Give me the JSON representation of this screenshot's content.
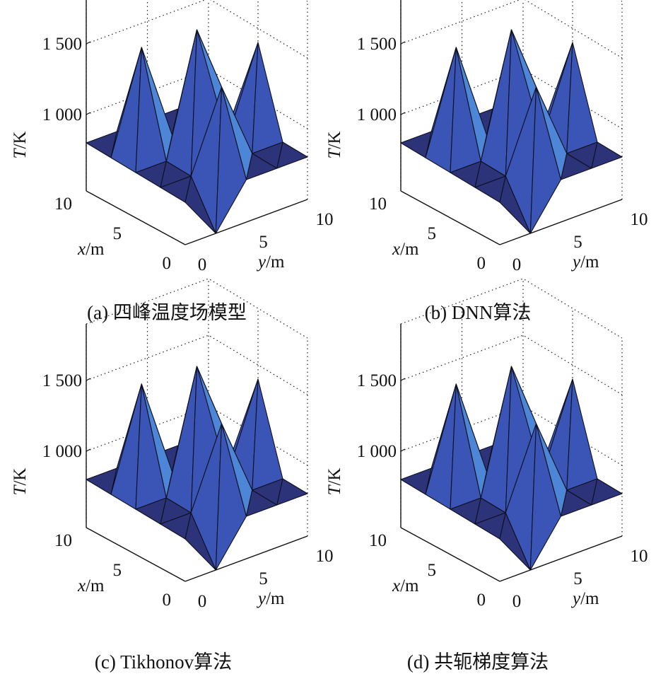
{
  "chart_data": [
    {
      "type": "surface3d",
      "caption": "(a) 四峰温度场模型",
      "zlabel_italic": "T",
      "zlabel_unit": "/K",
      "xlabel_italic": "x",
      "xlabel_unit": "/m",
      "ylabel_italic": "y",
      "ylabel_unit": "/m",
      "z_ticks": [
        "1 500",
        "1 000"
      ],
      "x_ticks": [
        "10",
        "5",
        "0"
      ],
      "y_ticks": [
        "0",
        "5",
        "10"
      ],
      "x_range": [
        0,
        10
      ],
      "y_range": [
        0,
        10
      ],
      "zlim": [
        500,
        1700
      ],
      "grid": "on",
      "colors": {
        "dark": "#2d3378",
        "mid": "#3a55b5",
        "light": "#4d86d6",
        "edge": "#0d1020",
        "grid": "#222222"
      },
      "peaks": [
        {
          "x": 7.5,
          "y": 2.5,
          "T": 1500
        },
        {
          "x": 5,
          "y": 5,
          "T": 1650
        },
        {
          "x": 2.5,
          "y": 5,
          "T": 1350
        },
        {
          "x": 5,
          "y": 10,
          "T": 1400
        }
      ],
      "valley": {
        "x": 0,
        "y": 2.5,
        "T": 500
      },
      "base_T": 800
    },
    {
      "type": "surface3d",
      "caption": "(b) DNN算法",
      "zlabel_italic": "T",
      "zlabel_unit": "/K",
      "xlabel_italic": "x",
      "xlabel_unit": "/m",
      "ylabel_italic": "y",
      "ylabel_unit": "/m",
      "z_ticks": [
        "1 500",
        "1 000"
      ],
      "x_ticks": [
        "10",
        "5",
        "0"
      ],
      "y_ticks": [
        "0",
        "5",
        "10"
      ],
      "x_range": [
        0,
        10
      ],
      "y_range": [
        0,
        10
      ],
      "zlim": [
        500,
        1700
      ],
      "grid": "on",
      "colors": {
        "dark": "#2d3378",
        "mid": "#3a55b5",
        "light": "#4d86d6",
        "edge": "#0d1020",
        "grid": "#222222"
      },
      "peaks": [
        {
          "x": 7.5,
          "y": 2.5,
          "T": 1500
        },
        {
          "x": 5,
          "y": 5,
          "T": 1650
        },
        {
          "x": 2.5,
          "y": 5,
          "T": 1350
        },
        {
          "x": 5,
          "y": 10,
          "T": 1400
        }
      ],
      "valley": {
        "x": 0,
        "y": 2.5,
        "T": 500
      },
      "base_T": 800
    },
    {
      "type": "surface3d",
      "caption": "(c) Tikhonov算法",
      "zlabel_italic": "T",
      "zlabel_unit": "/K",
      "xlabel_italic": "x",
      "xlabel_unit": "/m",
      "ylabel_italic": "y",
      "ylabel_unit": "/m",
      "z_ticks": [
        "1 500",
        "1 000"
      ],
      "x_ticks": [
        "10",
        "5",
        "0"
      ],
      "y_ticks": [
        "0",
        "5",
        "10"
      ],
      "x_range": [
        0,
        10
      ],
      "y_range": [
        0,
        10
      ],
      "zlim": [
        500,
        1700
      ],
      "grid": "on",
      "colors": {
        "dark": "#2d3378",
        "mid": "#3a55b5",
        "light": "#4d86d6",
        "edge": "#0d1020",
        "grid": "#222222"
      },
      "peaks": [
        {
          "x": 7.5,
          "y": 2.5,
          "T": 1500
        },
        {
          "x": 5,
          "y": 5,
          "T": 1650
        },
        {
          "x": 2.5,
          "y": 5,
          "T": 1350
        },
        {
          "x": 5,
          "y": 10,
          "T": 1400
        }
      ],
      "valley": {
        "x": 0,
        "y": 2.5,
        "T": 500
      },
      "base_T": 800
    },
    {
      "type": "surface3d",
      "caption": "(d) 共轭梯度算法",
      "zlabel_italic": "T",
      "zlabel_unit": "/K",
      "xlabel_italic": "x",
      "xlabel_unit": "/m",
      "ylabel_italic": "y",
      "ylabel_unit": "/m",
      "z_ticks": [
        "1 500",
        "1 000"
      ],
      "x_ticks": [
        "10",
        "5",
        "0"
      ],
      "y_ticks": [
        "0",
        "5",
        "10"
      ],
      "x_range": [
        0,
        10
      ],
      "y_range": [
        0,
        10
      ],
      "zlim": [
        500,
        1700
      ],
      "grid": "on",
      "colors": {
        "dark": "#2d3378",
        "mid": "#3a55b5",
        "light": "#4d86d6",
        "edge": "#0d1020",
        "grid": "#222222"
      },
      "peaks": [
        {
          "x": 7.5,
          "y": 2.5,
          "T": 1500
        },
        {
          "x": 5,
          "y": 5,
          "T": 1650
        },
        {
          "x": 2.5,
          "y": 5,
          "T": 1350
        },
        {
          "x": 5,
          "y": 10,
          "T": 1400
        }
      ],
      "valley": {
        "x": 0,
        "y": 2.5,
        "T": 500
      },
      "base_T": 800
    }
  ]
}
